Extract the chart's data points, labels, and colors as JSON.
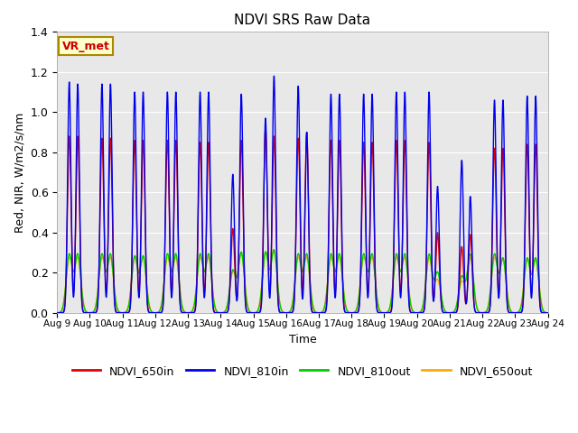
{
  "title": "NDVI SRS Raw Data",
  "xlabel": "Time",
  "ylabel": "Red, NIR, W/m2/s/nm",
  "annotation": "VR_met",
  "ylim": [
    0.0,
    1.4
  ],
  "yticks": [
    0.0,
    0.2,
    0.4,
    0.6,
    0.8,
    1.0,
    1.2,
    1.4
  ],
  "xtick_labels": [
    "Aug 9",
    "Aug 10",
    "Aug 11",
    "Aug 12",
    "Aug 13",
    "Aug 14",
    "Aug 15",
    "Aug 16",
    "Aug 17",
    "Aug 18",
    "Aug 19",
    "Aug 20",
    "Aug 21",
    "Aug 22",
    "Aug 23",
    "Aug 24"
  ],
  "colors": {
    "NDVI_650in": "#dd0000",
    "NDVI_810in": "#0000ee",
    "NDVI_810out": "#00cc00",
    "NDVI_650out": "#ffaa00"
  },
  "bg_color": "#e8e8e8",
  "grid_color": "#ffffff",
  "peak1_810in": [
    1.15,
    1.14,
    1.1,
    1.1,
    1.1,
    0.69,
    0.97,
    1.13,
    1.09,
    1.09,
    1.1,
    1.1,
    0.76,
    1.06,
    1.08
  ],
  "peak2_810in": [
    1.14,
    1.14,
    1.1,
    1.1,
    1.1,
    1.09,
    1.18,
    0.9,
    1.09,
    1.09,
    1.1,
    0.63,
    0.58,
    1.06,
    1.08
  ],
  "peak1_650in": [
    0.88,
    0.87,
    0.86,
    0.86,
    0.85,
    0.42,
    0.92,
    0.87,
    0.86,
    0.85,
    0.86,
    0.85,
    0.33,
    0.82,
    0.84
  ],
  "peak2_650in": [
    0.88,
    0.87,
    0.86,
    0.86,
    0.85,
    0.86,
    0.88,
    0.9,
    0.86,
    0.85,
    0.86,
    0.4,
    0.39,
    0.82,
    0.84
  ],
  "peak1_810out": [
    0.29,
    0.29,
    0.28,
    0.29,
    0.29,
    0.21,
    0.3,
    0.29,
    0.29,
    0.29,
    0.29,
    0.29,
    0.18,
    0.29,
    0.27
  ],
  "peak2_810out": [
    0.29,
    0.29,
    0.28,
    0.29,
    0.29,
    0.3,
    0.31,
    0.29,
    0.29,
    0.29,
    0.29,
    0.2,
    0.29,
    0.27,
    0.27
  ],
  "peak1_650out": [
    0.27,
    0.27,
    0.27,
    0.27,
    0.27,
    0.2,
    0.29,
    0.27,
    0.27,
    0.27,
    0.27,
    0.27,
    0.15,
    0.27,
    0.26
  ],
  "peak2_650out": [
    0.27,
    0.27,
    0.27,
    0.27,
    0.27,
    0.29,
    0.3,
    0.27,
    0.27,
    0.27,
    0.27,
    0.16,
    0.27,
    0.26,
    0.26
  ],
  "line_width": 1.0,
  "total_days": 15,
  "figsize": [
    6.4,
    4.8
  ],
  "dpi": 100
}
